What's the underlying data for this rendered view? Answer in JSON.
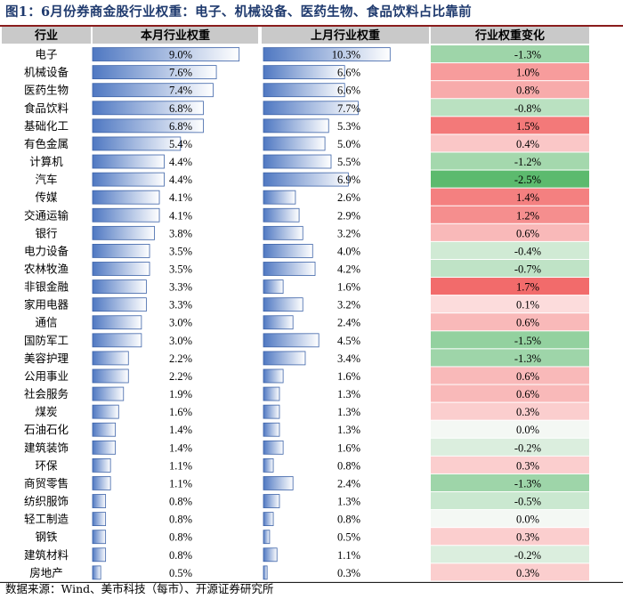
{
  "title": "图1：6月份券商金股行业权重：电子、机械设备、医药生物、食品饮料占比靠前",
  "source": "数据来源：Wind、美市科技（每市）、开源证券研究所",
  "chart_data": {
    "type": "table",
    "columns": [
      "行业",
      "本月行业权重",
      "上月行业权重",
      "行业权重变化"
    ],
    "rows": [
      {
        "industry": "电子",
        "current": "9.0%",
        "previous": "10.3%",
        "change": "-1.3%",
        "current_value": 9.0,
        "previous_value": 10.3,
        "change_value": -1.3
      },
      {
        "industry": "机械设备",
        "current": "7.6%",
        "previous": "6.6%",
        "change": "1.0%",
        "current_value": 7.6,
        "previous_value": 6.6,
        "change_value": 1.0
      },
      {
        "industry": "医药生物",
        "current": "7.4%",
        "previous": "6.6%",
        "change": "0.8%",
        "current_value": 7.4,
        "previous_value": 6.6,
        "change_value": 0.8
      },
      {
        "industry": "食品饮料",
        "current": "6.8%",
        "previous": "7.7%",
        "change": "-0.8%",
        "current_value": 6.8,
        "previous_value": 7.7,
        "change_value": -0.8
      },
      {
        "industry": "基础化工",
        "current": "6.8%",
        "previous": "5.3%",
        "change": "1.5%",
        "current_value": 6.8,
        "previous_value": 5.3,
        "change_value": 1.5
      },
      {
        "industry": "有色金属",
        "current": "5.4%",
        "previous": "5.0%",
        "change": "0.4%",
        "current_value": 5.4,
        "previous_value": 5.0,
        "change_value": 0.4
      },
      {
        "industry": "计算机",
        "current": "4.4%",
        "previous": "5.5%",
        "change": "-1.2%",
        "current_value": 4.4,
        "previous_value": 5.5,
        "change_value": -1.2
      },
      {
        "industry": "汽车",
        "current": "4.4%",
        "previous": "6.9%",
        "change": "-2.5%",
        "current_value": 4.4,
        "previous_value": 6.9,
        "change_value": -2.5
      },
      {
        "industry": "传媒",
        "current": "4.1%",
        "previous": "2.6%",
        "change": "1.4%",
        "current_value": 4.1,
        "previous_value": 2.6,
        "change_value": 1.4
      },
      {
        "industry": "交通运输",
        "current": "4.1%",
        "previous": "2.9%",
        "change": "1.2%",
        "current_value": 4.1,
        "previous_value": 2.9,
        "change_value": 1.2
      },
      {
        "industry": "银行",
        "current": "3.8%",
        "previous": "3.2%",
        "change": "0.6%",
        "current_value": 3.8,
        "previous_value": 3.2,
        "change_value": 0.6
      },
      {
        "industry": "电力设备",
        "current": "3.5%",
        "previous": "4.0%",
        "change": "-0.4%",
        "current_value": 3.5,
        "previous_value": 4.0,
        "change_value": -0.4
      },
      {
        "industry": "农林牧渔",
        "current": "3.5%",
        "previous": "4.2%",
        "change": "-0.7%",
        "current_value": 3.5,
        "previous_value": 4.2,
        "change_value": -0.7
      },
      {
        "industry": "非银金融",
        "current": "3.3%",
        "previous": "1.6%",
        "change": "1.7%",
        "current_value": 3.3,
        "previous_value": 1.6,
        "change_value": 1.7
      },
      {
        "industry": "家用电器",
        "current": "3.3%",
        "previous": "3.2%",
        "change": "0.1%",
        "current_value": 3.3,
        "previous_value": 3.2,
        "change_value": 0.1
      },
      {
        "industry": "通信",
        "current": "3.0%",
        "previous": "2.4%",
        "change": "0.6%",
        "current_value": 3.0,
        "previous_value": 2.4,
        "change_value": 0.6
      },
      {
        "industry": "国防军工",
        "current": "3.0%",
        "previous": "4.5%",
        "change": "-1.5%",
        "current_value": 3.0,
        "previous_value": 4.5,
        "change_value": -1.5
      },
      {
        "industry": "美容护理",
        "current": "2.2%",
        "previous": "3.4%",
        "change": "-1.3%",
        "current_value": 2.2,
        "previous_value": 3.4,
        "change_value": -1.3
      },
      {
        "industry": "公用事业",
        "current": "2.2%",
        "previous": "1.6%",
        "change": "0.6%",
        "current_value": 2.2,
        "previous_value": 1.6,
        "change_value": 0.6
      },
      {
        "industry": "社会服务",
        "current": "1.9%",
        "previous": "1.3%",
        "change": "0.6%",
        "current_value": 1.9,
        "previous_value": 1.3,
        "change_value": 0.6
      },
      {
        "industry": "煤炭",
        "current": "1.6%",
        "previous": "1.3%",
        "change": "0.3%",
        "current_value": 1.6,
        "previous_value": 1.3,
        "change_value": 0.3
      },
      {
        "industry": "石油石化",
        "current": "1.4%",
        "previous": "1.3%",
        "change": "0.0%",
        "current_value": 1.4,
        "previous_value": 1.3,
        "change_value": 0.0
      },
      {
        "industry": "建筑装饰",
        "current": "1.4%",
        "previous": "1.6%",
        "change": "-0.2%",
        "current_value": 1.4,
        "previous_value": 1.6,
        "change_value": -0.2
      },
      {
        "industry": "环保",
        "current": "1.1%",
        "previous": "0.8%",
        "change": "0.3%",
        "current_value": 1.1,
        "previous_value": 0.8,
        "change_value": 0.3
      },
      {
        "industry": "商贸零售",
        "current": "1.1%",
        "previous": "2.4%",
        "change": "-1.3%",
        "current_value": 1.1,
        "previous_value": 2.4,
        "change_value": -1.3
      },
      {
        "industry": "纺织服饰",
        "current": "0.8%",
        "previous": "1.3%",
        "change": "-0.5%",
        "current_value": 0.8,
        "previous_value": 1.3,
        "change_value": -0.5
      },
      {
        "industry": "轻工制造",
        "current": "0.8%",
        "previous": "0.8%",
        "change": "0.0%",
        "current_value": 0.8,
        "previous_value": 0.8,
        "change_value": 0.0
      },
      {
        "industry": "钢铁",
        "current": "0.8%",
        "previous": "0.5%",
        "change": "0.3%",
        "current_value": 0.8,
        "previous_value": 0.5,
        "change_value": 0.3
      },
      {
        "industry": "建筑材料",
        "current": "0.8%",
        "previous": "1.1%",
        "change": "-0.2%",
        "current_value": 0.8,
        "previous_value": 1.1,
        "change_value": -0.2
      },
      {
        "industry": "房地产",
        "current": "0.5%",
        "previous": "0.3%",
        "change": "0.3%",
        "current_value": 0.5,
        "previous_value": 0.3,
        "change_value": 0.3
      }
    ]
  },
  "colors": {
    "title_text": "#1f3a6e",
    "title_rule": "#8a1c1c",
    "header_bg": "#c9c9c9",
    "bar_fill_dark": "#4f78c2",
    "bar_fill_light": "#ffffff",
    "bar_border": "#3d63a8",
    "positive_strong": "#f26b6b",
    "positive_light": "#fde3e3",
    "negative_strong": "#5cba6e",
    "negative_light": "#e6f3e8",
    "neutral": "#f4f8f4"
  }
}
